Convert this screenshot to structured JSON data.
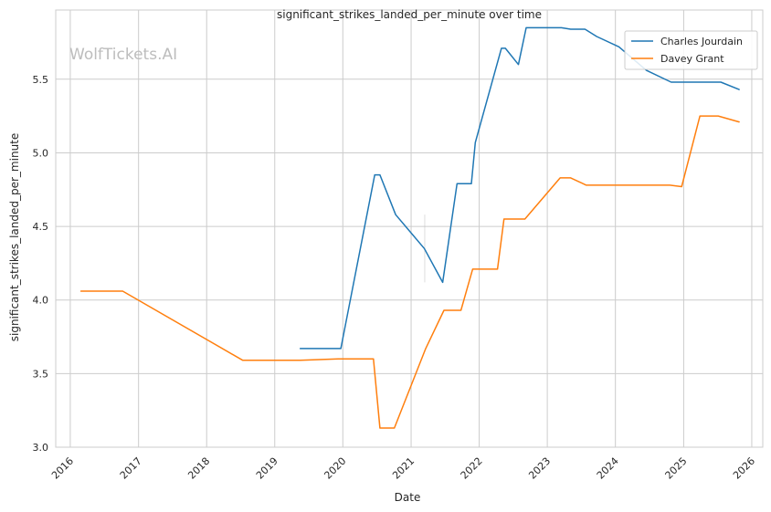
{
  "chart_data": {
    "type": "line",
    "title": "significant_strikes_landed_per_minute over time",
    "xlabel": "Date",
    "ylabel": "significant_strikes_landed_per_minute",
    "watermark": "WolfTickets.AI",
    "xlim": [
      "2015-10-15",
      "2026-03-01"
    ],
    "ylim": [
      3.0,
      5.97
    ],
    "x_ticks": [
      "2016",
      "2017",
      "2018",
      "2019",
      "2020",
      "2021",
      "2022",
      "2023",
      "2024",
      "2025",
      "2026"
    ],
    "y_ticks": [
      "3.0",
      "3.5",
      "4.0",
      "4.5",
      "5.0",
      "5.5"
    ],
    "grid": true,
    "legend_position": "top-right",
    "series": [
      {
        "name": "Charles Jourdain",
        "color": "#1f77b4",
        "points": [
          [
            "2019-05-18",
            3.67
          ],
          [
            "2019-12-21",
            3.67
          ],
          [
            "2020-06-20",
            4.85
          ],
          [
            "2020-07-18",
            4.85
          ],
          [
            "2020-10-10",
            4.58
          ],
          [
            "2021-03-13",
            4.35
          ],
          [
            "2021-06-19",
            4.12
          ],
          [
            "2021-09-04",
            4.79
          ],
          [
            "2021-11-20",
            4.79
          ],
          [
            "2021-12-11",
            5.07
          ],
          [
            "2022-04-30",
            5.71
          ],
          [
            "2022-05-21",
            5.71
          ],
          [
            "2022-07-30",
            5.6
          ],
          [
            "2022-09-10",
            5.85
          ],
          [
            "2023-03-18",
            5.85
          ],
          [
            "2023-05-06",
            5.84
          ],
          [
            "2023-07-22",
            5.84
          ],
          [
            "2023-09-23",
            5.79
          ],
          [
            "2024-01-20",
            5.72
          ],
          [
            "2024-06-15",
            5.56
          ],
          [
            "2024-10-26",
            5.48
          ],
          [
            "2025-05-31",
            5.48
          ],
          [
            "2025-07-19",
            5.48
          ],
          [
            "2025-10-25",
            5.43
          ]
        ]
      },
      {
        "name": "Davey Grant",
        "color": "#ff7f0e",
        "points": [
          [
            "2016-02-27",
            4.06
          ],
          [
            "2016-10-08",
            4.06
          ],
          [
            "2018-07-14",
            3.59
          ],
          [
            "2019-05-18",
            3.59
          ],
          [
            "2019-12-07",
            3.6
          ],
          [
            "2020-06-13",
            3.6
          ],
          [
            "2020-07-18",
            3.13
          ],
          [
            "2020-10-03",
            3.13
          ],
          [
            "2021-03-20",
            3.67
          ],
          [
            "2021-06-26",
            3.93
          ],
          [
            "2021-09-25",
            3.93
          ],
          [
            "2021-11-27",
            4.21
          ],
          [
            "2022-04-09",
            4.21
          ],
          [
            "2022-05-14",
            4.55
          ],
          [
            "2022-09-03",
            4.55
          ],
          [
            "2023-03-11",
            4.83
          ],
          [
            "2023-05-06",
            4.83
          ],
          [
            "2023-07-29",
            4.78
          ],
          [
            "2024-10-19",
            4.78
          ],
          [
            "2024-12-21",
            4.77
          ],
          [
            "2025-03-29",
            5.25
          ],
          [
            "2025-07-05",
            5.25
          ],
          [
            "2025-10-25",
            5.21
          ]
        ]
      }
    ]
  }
}
